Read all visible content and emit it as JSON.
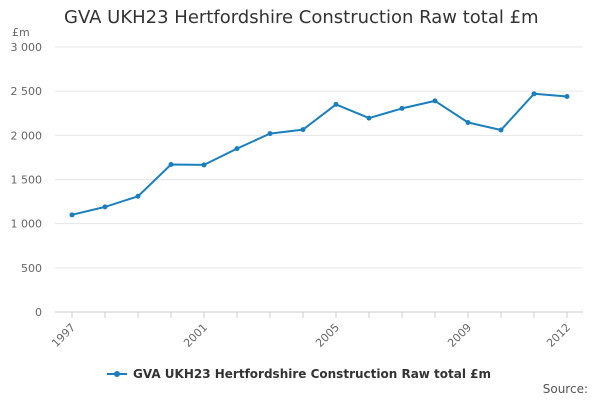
{
  "chart_data": {
    "type": "line",
    "title": "GVA UKH23 Hertfordshire Construction Raw total £m",
    "ylabel": "£m",
    "xlabel": "",
    "x": [
      1997,
      1998,
      1999,
      2000,
      2001,
      2002,
      2003,
      2004,
      2005,
      2006,
      2007,
      2008,
      2009,
      2010,
      2011,
      2012
    ],
    "series": [
      {
        "name": "GVA UKH23 Hertfordshire Construction Raw total £m",
        "values": [
          1100,
          1190,
          1310,
          1670,
          1665,
          1850,
          2020,
          2065,
          2350,
          2195,
          2305,
          2390,
          2145,
          2060,
          2470,
          2440
        ],
        "color": "#1a7fbf"
      }
    ],
    "ylim": [
      0,
      3000
    ],
    "yticks": [
      0,
      500,
      1000,
      1500,
      2000,
      2500,
      3000
    ],
    "ytick_labels": [
      "0",
      "500",
      "1 000",
      "1 500",
      "2 000",
      "2 500",
      "3 000"
    ],
    "xticks": [
      1997,
      2001,
      2005,
      2009,
      2012
    ],
    "xtick_labels": [
      "1997",
      "2001",
      "2005",
      "2009",
      "2012"
    ],
    "grid": true,
    "legend_position": "bottom",
    "source_label": "Source:"
  }
}
